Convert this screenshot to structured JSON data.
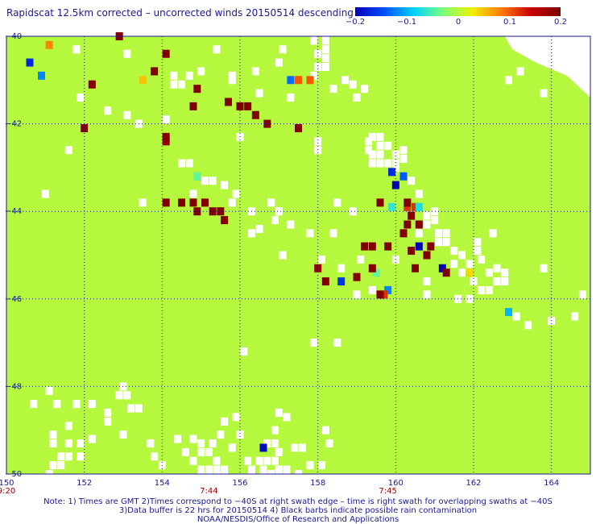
{
  "title": "Rapidscat 12.5km corrected – uncorrected winds 20150514 descending",
  "colorbar": {
    "ticks": [
      "−0.2",
      "−0.1",
      "0",
      "0.1",
      "0.2"
    ],
    "stops": [
      "#0000b4",
      "#0050ff",
      "#00d2ff",
      "#7cff7c",
      "#f0f000",
      "#ff7800",
      "#c80000",
      "#780000"
    ]
  },
  "colors": {
    "background_wind": "#7cff7c",
    "no_data": "#ffffff",
    "rain_flag": "#800000",
    "grid": "#1a1a8c",
    "time_label": "#a00000"
  },
  "chart_data": {
    "type": "heatmap",
    "title": "Rapidscat 12.5km corrected – uncorrected winds 20150514 descending",
    "xlabel": "",
    "ylabel": "",
    "xlim": [
      150,
      165
    ],
    "ylim": [
      -50,
      -40
    ],
    "x_ticks": [
      "150",
      "152",
      "154",
      "156",
      "158",
      "160",
      "162",
      "164"
    ],
    "y_ticks": [
      "−40",
      "−42",
      "−44",
      "−46",
      "−48",
      "−50"
    ],
    "time_labels": [
      {
        "lon": 150,
        "text": "9:20"
      },
      {
        "lon": 155.2,
        "text": "7:44"
      },
      {
        "lon": 159.8,
        "text": "7:45"
      }
    ],
    "colorbar_range": [
      -0.2,
      0.2
    ],
    "grid": true,
    "default_value": 0.0,
    "cells": [
      {
        "lon": 151.1,
        "lat": -40.2,
        "value": 0.08
      },
      {
        "lon": 150.6,
        "lat": -40.6,
        "value": -0.17
      },
      {
        "lon": 150.9,
        "lat": -40.9,
        "value": -0.12
      },
      {
        "lon": 154.9,
        "lat": -43.2,
        "value": -0.04
      },
      {
        "lon": 153.5,
        "lat": -41.0,
        "value": 0.05
      },
      {
        "lon": 157.3,
        "lat": -41.0,
        "value": -0.13
      },
      {
        "lon": 157.5,
        "lat": -41.0,
        "value": 0.1
      },
      {
        "lon": 157.8,
        "lat": -41.0,
        "value": 0.1
      },
      {
        "lon": 154.1,
        "lat": -42.4,
        "value": 0.18
      },
      {
        "lon": 159.9,
        "lat": -43.1,
        "value": -0.17
      },
      {
        "lon": 160.2,
        "lat": -43.2,
        "value": -0.14
      },
      {
        "lon": 160.0,
        "lat": -43.4,
        "value": -0.2
      },
      {
        "lon": 159.9,
        "lat": -43.9,
        "value": -0.06
      },
      {
        "lon": 160.3,
        "lat": -43.9,
        "value": 0.12
      },
      {
        "lon": 160.5,
        "lat": -43.9,
        "value": 0.12
      },
      {
        "lon": 160.6,
        "lat": -43.9,
        "value": -0.07
      },
      {
        "lon": 159.5,
        "lat": -45.4,
        "value": -0.04
      },
      {
        "lon": 158.0,
        "lat": -45.3,
        "value": 0.18
      },
      {
        "lon": 158.6,
        "lat": -45.6,
        "value": -0.16
      },
      {
        "lon": 159.8,
        "lat": -45.8,
        "value": -0.12
      },
      {
        "lon": 159.7,
        "lat": -45.9,
        "value": 0.12
      },
      {
        "lon": 160.6,
        "lat": -44.8,
        "value": -0.2
      },
      {
        "lon": 161.2,
        "lat": -45.3,
        "value": -0.2
      },
      {
        "lon": 161.9,
        "lat": -45.4,
        "value": 0.04
      },
      {
        "lon": 162.9,
        "lat": -46.3,
        "value": -0.1
      },
      {
        "lon": 156.6,
        "lat": -49.4,
        "value": -0.19
      }
    ],
    "rain_flags": [
      [
        152.9,
        -40.0
      ],
      [
        154.1,
        -40.4
      ],
      [
        153.8,
        -40.8
      ],
      [
        152.2,
        -41.1
      ],
      [
        154.9,
        -41.2
      ],
      [
        154.8,
        -41.6
      ],
      [
        155.7,
        -41.5
      ],
      [
        156.0,
        -41.6
      ],
      [
        156.2,
        -41.6
      ],
      [
        156.4,
        -41.8
      ],
      [
        156.7,
        -42.0
      ],
      [
        157.5,
        -42.1
      ],
      [
        152.0,
        -42.1
      ],
      [
        154.1,
        -42.3
      ],
      [
        154.1,
        -43.8
      ],
      [
        154.5,
        -43.8
      ],
      [
        154.8,
        -43.8
      ],
      [
        155.1,
        -43.8
      ],
      [
        154.9,
        -44.0
      ],
      [
        155.3,
        -44.0
      ],
      [
        155.5,
        -44.0
      ],
      [
        155.6,
        -44.2
      ],
      [
        159.6,
        -43.8
      ],
      [
        160.3,
        -43.8
      ],
      [
        160.4,
        -44.1
      ],
      [
        160.3,
        -44.3
      ],
      [
        160.6,
        -44.3
      ],
      [
        160.2,
        -44.5
      ],
      [
        159.2,
        -44.8
      ],
      [
        159.4,
        -44.8
      ],
      [
        159.8,
        -44.8
      ],
      [
        160.4,
        -44.9
      ],
      [
        160.9,
        -44.8
      ],
      [
        159.4,
        -45.3
      ],
      [
        159.0,
        -45.5
      ],
      [
        160.5,
        -45.3
      ],
      [
        161.3,
        -45.4
      ],
      [
        158.2,
        -45.6
      ],
      [
        160.8,
        -45.0
      ],
      [
        159.6,
        -45.9
      ]
    ],
    "missing_cells": [
      [
        158.2,
        -40.1
      ],
      [
        158.2,
        -40.3
      ],
      [
        158.2,
        -40.5
      ],
      [
        158.2,
        -40.7
      ],
      [
        158.0,
        -40.4
      ],
      [
        158.0,
        -40.7
      ],
      [
        157.9,
        -40.9
      ],
      [
        158.4,
        -41.2
      ],
      [
        158.7,
        -41.0
      ],
      [
        158.9,
        -41.1
      ],
      [
        159.2,
        -41.2
      ],
      [
        159.0,
        -41.4
      ],
      [
        159.3,
        -42.4
      ],
      [
        159.3,
        -42.6
      ],
      [
        151.9,
        -41.4
      ],
      [
        152.6,
        -41.7
      ],
      [
        153.1,
        -41.8
      ],
      [
        153.4,
        -42.0
      ],
      [
        154.1,
        -41.9
      ],
      [
        153.1,
        -40.4
      ],
      [
        151.8,
        -40.3
      ],
      [
        155.4,
        -40.3
      ],
      [
        156.4,
        -40.8
      ],
      [
        155.8,
        -40.9
      ],
      [
        156.5,
        -41.3
      ],
      [
        157.3,
        -41.4
      ],
      [
        157.1,
        -40.3
      ],
      [
        157.0,
        -40.6
      ],
      [
        155.0,
        -40.8
      ],
      [
        154.7,
        -40.9
      ],
      [
        154.3,
        -40.9
      ],
      [
        154.3,
        -41.1
      ],
      [
        154.5,
        -41.1
      ],
      [
        156.0,
        -42.3
      ],
      [
        158.0,
        -42.4
      ],
      [
        157.9,
        -40.1
      ],
      [
        155.8,
        -41.0
      ],
      [
        151.6,
        -42.6
      ],
      [
        154.5,
        -42.9
      ],
      [
        154.7,
        -42.9
      ],
      [
        155.1,
        -43.3
      ],
      [
        155.3,
        -43.3
      ],
      [
        155.6,
        -43.4
      ],
      [
        155.9,
        -43.6
      ],
      [
        156.3,
        -44.0
      ],
      [
        156.8,
        -43.8
      ],
      [
        157.0,
        -44.0
      ],
      [
        156.9,
        -44.2
      ],
      [
        157.3,
        -44.3
      ],
      [
        156.5,
        -44.4
      ],
      [
        156.3,
        -44.5
      ],
      [
        151.0,
        -43.6
      ],
      [
        153.5,
        -43.8
      ],
      [
        154.8,
        -43.6
      ],
      [
        155.8,
        -43.8
      ],
      [
        157.8,
        -44.5
      ],
      [
        159.4,
        -42.3
      ],
      [
        159.6,
        -42.3
      ],
      [
        159.6,
        -42.5
      ],
      [
        159.8,
        -42.5
      ],
      [
        159.6,
        -42.7
      ],
      [
        159.4,
        -42.7
      ],
      [
        159.4,
        -42.9
      ],
      [
        159.6,
        -42.9
      ],
      [
        159.8,
        -42.9
      ],
      [
        160.0,
        -42.9
      ],
      [
        160.2,
        -42.6
      ],
      [
        160.2,
        -42.8
      ],
      [
        160.0,
        -42.7
      ],
      [
        160.0,
        -43.0
      ],
      [
        160.4,
        -43.3
      ],
      [
        160.6,
        -43.6
      ],
      [
        160.8,
        -44.1
      ],
      [
        160.8,
        -44.3
      ],
      [
        161.0,
        -44.2
      ],
      [
        160.6,
        -44.5
      ],
      [
        161.1,
        -44.5
      ],
      [
        161.3,
        -44.5
      ],
      [
        161.1,
        -44.7
      ],
      [
        161.3,
        -44.7
      ],
      [
        161.5,
        -44.9
      ],
      [
        161.5,
        -45.2
      ],
      [
        161.7,
        -45.0
      ],
      [
        161.9,
        -45.2
      ],
      [
        161.7,
        -45.4
      ],
      [
        162.0,
        -45.6
      ],
      [
        162.2,
        -45.8
      ],
      [
        162.4,
        -45.8
      ],
      [
        162.6,
        -45.6
      ],
      [
        162.4,
        -45.4
      ],
      [
        162.6,
        -45.3
      ],
      [
        162.8,
        -45.4
      ],
      [
        162.8,
        -45.6
      ],
      [
        162.2,
        -45.1
      ],
      [
        162.1,
        -44.9
      ],
      [
        162.1,
        -44.7
      ],
      [
        161.6,
        -46.0
      ],
      [
        161.9,
        -46.0
      ],
      [
        160.8,
        -45.9
      ],
      [
        160.8,
        -45.6
      ],
      [
        160.0,
        -45.1
      ],
      [
        159.4,
        -45.8
      ],
      [
        159.0,
        -45.9
      ],
      [
        158.6,
        -45.3
      ],
      [
        159.1,
        -45.1
      ],
      [
        158.1,
        -45.1
      ],
      [
        158.4,
        -44.5
      ],
      [
        158.9,
        -44.0
      ],
      [
        158.5,
        -43.8
      ],
      [
        163.1,
        -46.4
      ],
      [
        163.4,
        -46.6
      ],
      [
        164.0,
        -46.5
      ],
      [
        164.6,
        -46.4
      ],
      [
        164.8,
        -45.9
      ],
      [
        163.8,
        -45.3
      ],
      [
        162.5,
        -44.5
      ],
      [
        161.0,
        -44.0
      ],
      [
        158.0,
        -42.6
      ],
      [
        157.9,
        -47.0
      ],
      [
        158.5,
        -47.0
      ],
      [
        157.1,
        -45.0
      ],
      [
        162.9,
        -41.0
      ],
      [
        163.2,
        -40.8
      ],
      [
        163.8,
        -41.3
      ],
      [
        151.3,
        -48.4
      ],
      [
        151.6,
        -48.9
      ],
      [
        151.8,
        -48.4
      ],
      [
        152.2,
        -48.4
      ],
      [
        152.6,
        -48.6
      ],
      [
        152.6,
        -48.8
      ],
      [
        153.0,
        -48.0
      ],
      [
        153.1,
        -48.2
      ],
      [
        152.9,
        -48.2
      ],
      [
        153.4,
        -48.5
      ],
      [
        153.2,
        -48.5
      ],
      [
        153.0,
        -49.1
      ],
      [
        151.2,
        -49.1
      ],
      [
        151.2,
        -49.3
      ],
      [
        151.6,
        -49.3
      ],
      [
        151.4,
        -49.6
      ],
      [
        151.6,
        -49.6
      ],
      [
        151.9,
        -49.6
      ],
      [
        151.2,
        -49.8
      ],
      [
        151.4,
        -49.8
      ],
      [
        151.1,
        -50.0
      ],
      [
        151.9,
        -49.3
      ],
      [
        152.2,
        -49.2
      ],
      [
        151.1,
        -48.1
      ],
      [
        150.7,
        -48.4
      ],
      [
        154.8,
        -49.2
      ],
      [
        154.6,
        -49.5
      ],
      [
        154.8,
        -49.7
      ],
      [
        155.0,
        -49.9
      ],
      [
        155.2,
        -49.9
      ],
      [
        155.4,
        -49.9
      ],
      [
        155.6,
        -49.9
      ],
      [
        155.4,
        -49.7
      ],
      [
        155.2,
        -49.5
      ],
      [
        155.0,
        -49.5
      ],
      [
        155.0,
        -49.3
      ],
      [
        155.3,
        -49.3
      ],
      [
        155.5,
        -49.1
      ],
      [
        155.6,
        -48.8
      ],
      [
        155.9,
        -48.7
      ],
      [
        156.0,
        -49.1
      ],
      [
        155.8,
        -49.4
      ],
      [
        156.2,
        -49.7
      ],
      [
        156.5,
        -49.7
      ],
      [
        156.7,
        -49.7
      ],
      [
        156.9,
        -49.7
      ],
      [
        157.0,
        -49.9
      ],
      [
        156.6,
        -49.9
      ],
      [
        156.3,
        -49.9
      ],
      [
        156.8,
        -50.0
      ],
      [
        156.7,
        -49.3
      ],
      [
        156.9,
        -49.3
      ],
      [
        156.9,
        -49.0
      ],
      [
        157.2,
        -48.7
      ],
      [
        157.0,
        -49.5
      ],
      [
        157.4,
        -49.4
      ],
      [
        157.2,
        -49.9
      ],
      [
        157.6,
        -49.4
      ],
      [
        157.8,
        -49.8
      ],
      [
        157.5,
        -50.0
      ],
      [
        154.0,
        -49.8
      ],
      [
        154.4,
        -49.2
      ],
      [
        156.1,
        -47.2
      ],
      [
        157.0,
        -48.6
      ],
      [
        158.2,
        -49.0
      ],
      [
        158.3,
        -49.3
      ],
      [
        153.7,
        -49.3
      ],
      [
        153.8,
        -49.6
      ],
      [
        158.1,
        -49.8
      ]
    ]
  },
  "notes": {
    "line1": "Note: 1) Times are GMT 2)Times correspond to −40S at right swath edge – time is right swath for overlapping swaths at −40S",
    "line2": "3)Data buffer is 22 hrs for 20150514 4) Black barbs indicate possible rain contamination",
    "line3": "NOAA/NESDIS/Office of Research and Applications"
  }
}
